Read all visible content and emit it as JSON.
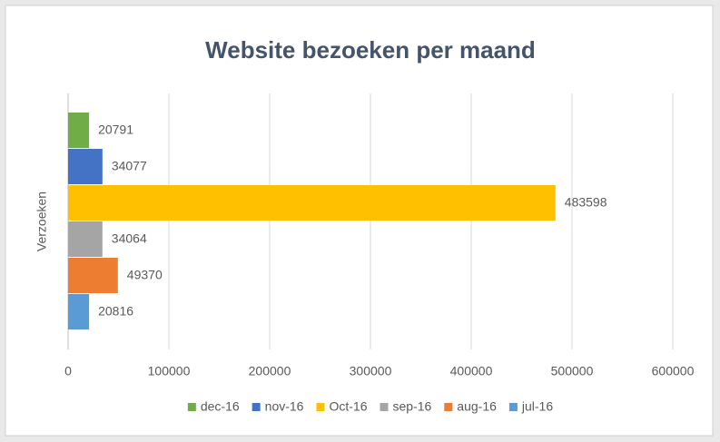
{
  "chart_data": {
    "type": "bar",
    "orientation": "horizontal",
    "title": "Website bezoeken per maand",
    "categories": [
      "Verzoeken"
    ],
    "series": [
      {
        "name": "dec-16",
        "color": "#70ad47",
        "values": [
          20791
        ]
      },
      {
        "name": "nov-16",
        "color": "#4472c4",
        "values": [
          34077
        ]
      },
      {
        "name": "Oct-16",
        "color": "#ffc000",
        "values": [
          483598
        ]
      },
      {
        "name": "sep-16",
        "color": "#a5a5a5",
        "values": [
          34064
        ]
      },
      {
        "name": "aug-16",
        "color": "#ed7d31",
        "values": [
          49370
        ]
      },
      {
        "name": "jul-16",
        "color": "#5b9bd5",
        "values": [
          20816
        ]
      }
    ],
    "xlim": [
      0,
      600000
    ],
    "xticks": [
      0,
      100000,
      200000,
      300000,
      400000,
      500000,
      600000
    ],
    "grid": true,
    "data_labels": true,
    "legend": "bottom"
  }
}
